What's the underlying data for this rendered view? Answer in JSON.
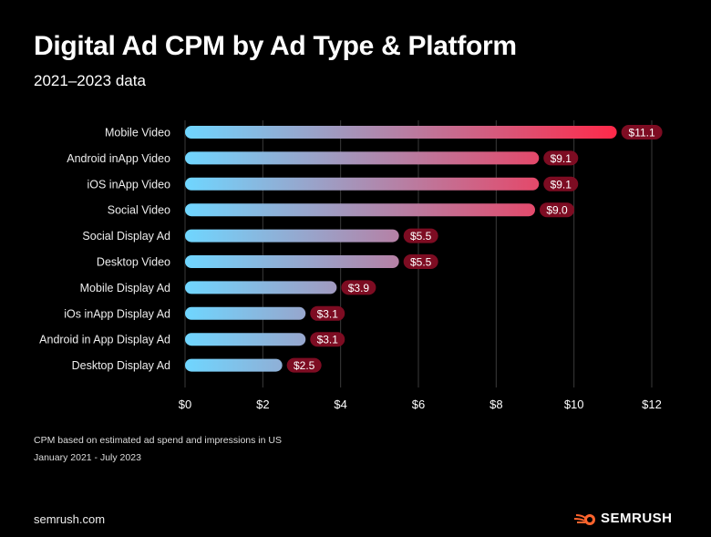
{
  "title": "Digital Ad CPM by Ad Type & Platform",
  "subtitle": "2021–2023 data",
  "notes": [
    "CPM based on estimated ad spend and impressions in US",
    "January 2021 - July 2023"
  ],
  "footer": {
    "site": "semrush.com",
    "brand": "SEMRUSH"
  },
  "colors": {
    "bar_start": "#6fd6ff",
    "bar_end": "#ff2848",
    "label_bg": "#7d0c22",
    "grid": "#3a3a3a",
    "brand_orange": "#ff642d"
  },
  "chart_data": {
    "type": "bar",
    "orientation": "horizontal",
    "categories": [
      "Mobile Video",
      "Android inApp Video",
      "iOS inApp Video",
      "Social Video",
      "Social Display Ad",
      "Desktop Video",
      "Mobile Display Ad",
      "iOs inApp Display Ad",
      "Android in App Display Ad",
      "Desktop Display Ad"
    ],
    "values": [
      11.1,
      9.1,
      9.1,
      9.0,
      5.5,
      5.5,
      3.9,
      3.1,
      3.1,
      2.5
    ],
    "data_labels": [
      "$11.1",
      "$9.1",
      "$9.1",
      "$9.0",
      "$5.5",
      "$5.5",
      "$3.9",
      "$3.1",
      "$3.1",
      "$2.5"
    ],
    "xlim": [
      0,
      12
    ],
    "xticks": [
      0,
      2,
      4,
      6,
      8,
      10,
      12
    ],
    "xtick_labels": [
      "$0",
      "$2",
      "$4",
      "$6",
      "$8",
      "$10",
      "$12"
    ],
    "grid": "vertical",
    "legend": "none"
  }
}
